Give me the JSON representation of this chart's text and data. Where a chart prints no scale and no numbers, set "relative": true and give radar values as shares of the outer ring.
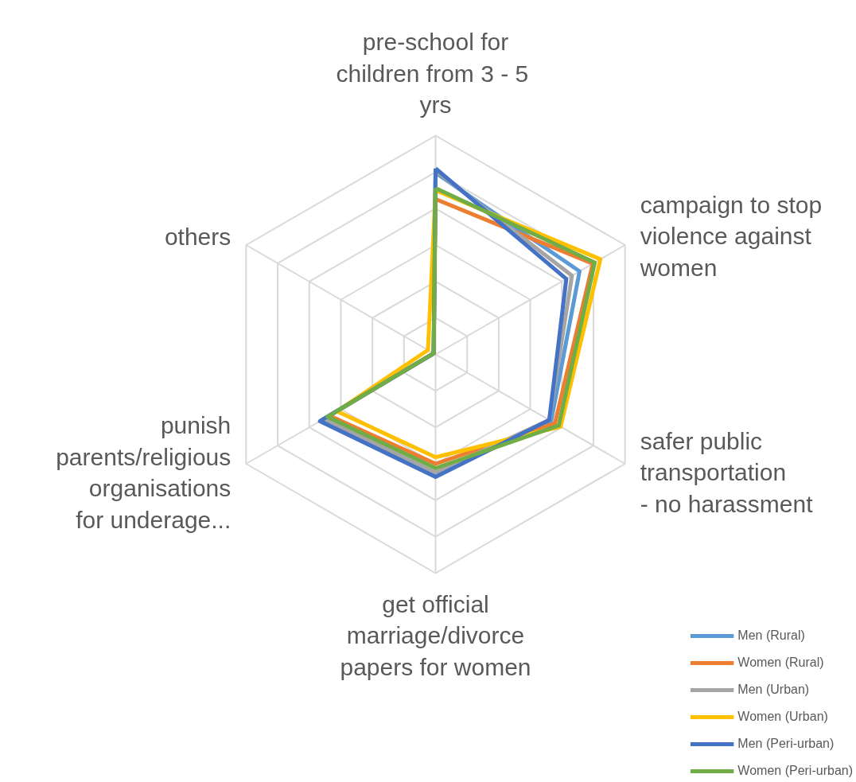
{
  "chart_data": {
    "type": "radar",
    "relative": true,
    "legend": "bottom right",
    "grid": true,
    "categories": [
      "pre-school for children from 3 -  5  yrs",
      "campaign to stop violence against women",
      "safer public transportation  - no harassment",
      "get official marriage/divorce papers for women",
      "punish parents/religious organisations for underage...",
      "others"
    ],
    "series": [
      {
        "name": "Men (Rural)",
        "color": "#5b9bd5",
        "values": [
          0.83,
          0.76,
          0.61,
          0.55,
          0.6,
          0.01
        ]
      },
      {
        "name": "Women (Rural)",
        "color": "#ed7d31",
        "values": [
          0.71,
          0.83,
          0.63,
          0.5,
          0.56,
          0.01
        ]
      },
      {
        "name": "Men (Urban)",
        "color": "#a5a5a5",
        "values": [
          0.84,
          0.72,
          0.6,
          0.54,
          0.59,
          0.01
        ]
      },
      {
        "name": "Women (Urban)",
        "color": "#ffc000",
        "values": [
          0.75,
          0.87,
          0.66,
          0.47,
          0.52,
          0.04
        ]
      },
      {
        "name": "Men (Peri-urban)",
        "color": "#4472c4",
        "values": [
          0.85,
          0.69,
          0.6,
          0.56,
          0.61,
          0.01
        ]
      },
      {
        "name": "Women (Peri-urban)",
        "color": "#70ad47",
        "values": [
          0.76,
          0.84,
          0.65,
          0.52,
          0.57,
          0.01
        ]
      }
    ]
  }
}
